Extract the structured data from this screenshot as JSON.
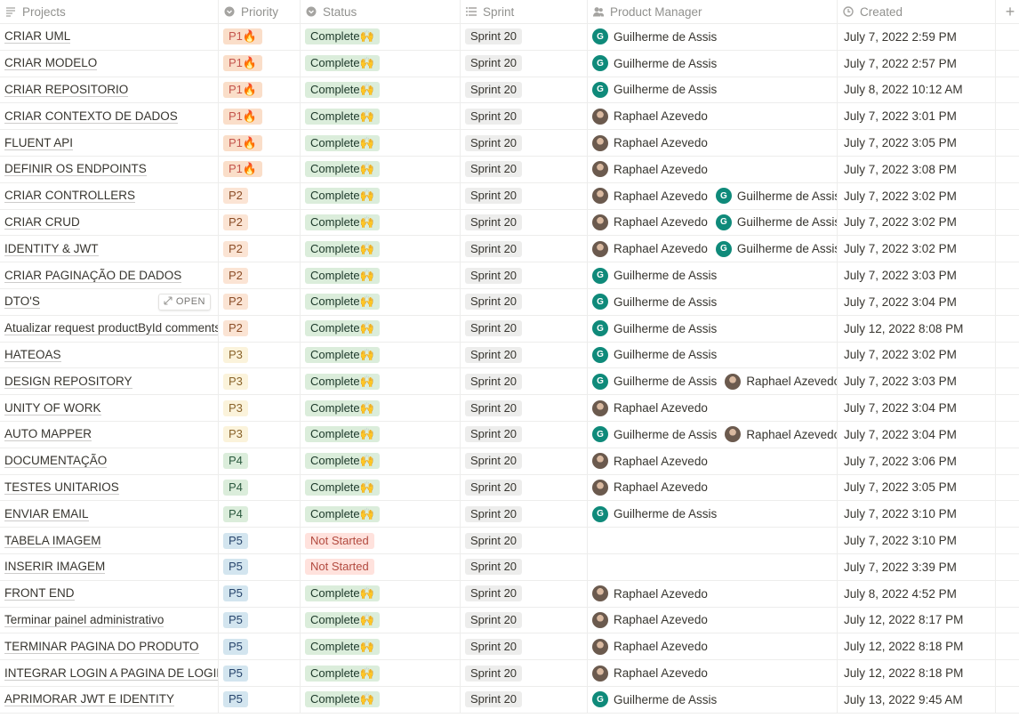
{
  "header": {
    "projects": "Projects",
    "priority": "Priority",
    "status": "Status",
    "sprint": "Sprint",
    "product_manager": "Product Manager",
    "created": "Created",
    "add": "+"
  },
  "open_label": "OPEN",
  "icons": {
    "projects": "text-icon",
    "priority": "select-icon",
    "status": "select-icon",
    "sprint": "list-icon",
    "product_manager": "person-icon",
    "created": "clock-icon",
    "open": "expand-icon"
  },
  "rows": [
    {
      "project": "CRIAR UML",
      "priority": "P1🔥",
      "priority_level": "p1",
      "status": "Complete🙌",
      "status_kind": "complete",
      "sprint": "Sprint 20",
      "managers": [
        {
          "name": "Guilherme de Assis",
          "initial": "G",
          "kind": "g"
        }
      ],
      "created": "July 7, 2022 2:59 PM"
    },
    {
      "project": "CRIAR MODELO",
      "priority": "P1🔥",
      "priority_level": "p1",
      "status": "Complete🙌",
      "status_kind": "complete",
      "sprint": "Sprint 20",
      "managers": [
        {
          "name": "Guilherme de Assis",
          "initial": "G",
          "kind": "g"
        }
      ],
      "created": "July 7, 2022 2:57 PM"
    },
    {
      "project": "CRIAR REPOSITORIO",
      "priority": "P1🔥",
      "priority_level": "p1",
      "status": "Complete🙌",
      "status_kind": "complete",
      "sprint": "Sprint 20",
      "managers": [
        {
          "name": "Guilherme de Assis",
          "initial": "G",
          "kind": "g"
        }
      ],
      "created": "July 8, 2022 10:12 AM"
    },
    {
      "project": "CRIAR CONTEXTO DE DADOS",
      "priority": "P1🔥",
      "priority_level": "p1",
      "status": "Complete🙌",
      "status_kind": "complete",
      "sprint": "Sprint 20",
      "managers": [
        {
          "name": "Raphael Azevedo",
          "initial": "",
          "kind": "r"
        }
      ],
      "created": "July 7, 2022 3:01 PM"
    },
    {
      "project": "FLUENT API",
      "priority": "P1🔥",
      "priority_level": "p1",
      "status": "Complete🙌",
      "status_kind": "complete",
      "sprint": "Sprint 20",
      "managers": [
        {
          "name": "Raphael Azevedo",
          "initial": "",
          "kind": "r"
        }
      ],
      "created": "July 7, 2022 3:05 PM"
    },
    {
      "project": "DEFINIR OS ENDPOINTS",
      "priority": "P1🔥",
      "priority_level": "p1",
      "status": "Complete🙌",
      "status_kind": "complete",
      "sprint": "Sprint 20",
      "managers": [
        {
          "name": "Raphael Azevedo",
          "initial": "",
          "kind": "r"
        }
      ],
      "created": "July 7, 2022 3:08 PM"
    },
    {
      "project": "CRIAR CONTROLLERS",
      "priority": "P2",
      "priority_level": "p2",
      "status": "Complete🙌",
      "status_kind": "complete",
      "sprint": "Sprint 20",
      "managers": [
        {
          "name": "Raphael Azevedo",
          "initial": "",
          "kind": "r"
        },
        {
          "name": "Guilherme de Assis",
          "initial": "G",
          "kind": "g"
        }
      ],
      "created": "July 7, 2022 3:02 PM"
    },
    {
      "project": "CRIAR CRUD",
      "priority": "P2",
      "priority_level": "p2",
      "status": "Complete🙌",
      "status_kind": "complete",
      "sprint": "Sprint 20",
      "managers": [
        {
          "name": "Raphael Azevedo",
          "initial": "",
          "kind": "r"
        },
        {
          "name": "Guilherme de Assis",
          "initial": "G",
          "kind": "g"
        }
      ],
      "created": "July 7, 2022 3:02 PM"
    },
    {
      "project": "IDENTITY & JWT",
      "priority": "P2",
      "priority_level": "p2",
      "status": "Complete🙌",
      "status_kind": "complete",
      "sprint": "Sprint 20",
      "managers": [
        {
          "name": "Raphael Azevedo",
          "initial": "",
          "kind": "r"
        },
        {
          "name": "Guilherme de Assis",
          "initial": "G",
          "kind": "g"
        }
      ],
      "created": "July 7, 2022 3:02 PM"
    },
    {
      "project": "CRIAR PAGINAÇÃO DE DADOS",
      "priority": "P2",
      "priority_level": "p2",
      "status": "Complete🙌",
      "status_kind": "complete",
      "sprint": "Sprint 20",
      "managers": [
        {
          "name": "Guilherme de Assis",
          "initial": "G",
          "kind": "g"
        }
      ],
      "created": "July 7, 2022 3:03 PM"
    },
    {
      "project": "DTO'S",
      "priority": "P2",
      "priority_level": "p2",
      "status": "Complete🙌",
      "status_kind": "complete",
      "sprint": "Sprint 20",
      "managers": [
        {
          "name": "Guilherme de Assis",
          "initial": "G",
          "kind": "g"
        }
      ],
      "created": "July 7, 2022 3:04 PM",
      "hover_open": true
    },
    {
      "project": "Atualizar request productById comments",
      "priority": "P2",
      "priority_level": "p2",
      "status": "Complete🙌",
      "status_kind": "complete",
      "sprint": "Sprint 20",
      "managers": [
        {
          "name": "Guilherme de Assis",
          "initial": "G",
          "kind": "g"
        }
      ],
      "created": "July 12, 2022 8:08 PM"
    },
    {
      "project": "HATEOAS",
      "priority": "P3",
      "priority_level": "p3",
      "status": "Complete🙌",
      "status_kind": "complete",
      "sprint": "Sprint 20",
      "managers": [
        {
          "name": "Guilherme de Assis",
          "initial": "G",
          "kind": "g"
        }
      ],
      "created": "July 7, 2022 3:02 PM"
    },
    {
      "project": "DESIGN REPOSITORY",
      "priority": "P3",
      "priority_level": "p3",
      "status": "Complete🙌",
      "status_kind": "complete",
      "sprint": "Sprint 20",
      "managers": [
        {
          "name": "Guilherme de Assis",
          "initial": "G",
          "kind": "g"
        },
        {
          "name": "Raphael Azevedo",
          "initial": "",
          "kind": "r"
        }
      ],
      "created": "July 7, 2022 3:03 PM"
    },
    {
      "project": "UNITY OF WORK",
      "priority": "P3",
      "priority_level": "p3",
      "status": "Complete🙌",
      "status_kind": "complete",
      "sprint": "Sprint 20",
      "managers": [
        {
          "name": "Raphael Azevedo",
          "initial": "",
          "kind": "r"
        }
      ],
      "created": "July 7, 2022 3:04 PM"
    },
    {
      "project": "AUTO MAPPER",
      "priority": "P3",
      "priority_level": "p3",
      "status": "Complete🙌",
      "status_kind": "complete",
      "sprint": "Sprint 20",
      "managers": [
        {
          "name": "Guilherme de Assis",
          "initial": "G",
          "kind": "g"
        },
        {
          "name": "Raphael Azevedo",
          "initial": "",
          "kind": "r"
        }
      ],
      "created": "July 7, 2022 3:04 PM"
    },
    {
      "project": "DOCUMENTAÇÃO",
      "priority": "P4",
      "priority_level": "p4",
      "status": "Complete🙌",
      "status_kind": "complete",
      "sprint": "Sprint 20",
      "managers": [
        {
          "name": "Raphael Azevedo",
          "initial": "",
          "kind": "r"
        }
      ],
      "created": "July 7, 2022 3:06 PM"
    },
    {
      "project": "TESTES UNITARIOS",
      "priority": "P4",
      "priority_level": "p4",
      "status": "Complete🙌",
      "status_kind": "complete",
      "sprint": "Sprint 20",
      "managers": [
        {
          "name": "Raphael Azevedo",
          "initial": "",
          "kind": "r"
        }
      ],
      "created": "July 7, 2022 3:05 PM"
    },
    {
      "project": "ENVIAR EMAIL",
      "priority": "P4",
      "priority_level": "p4",
      "status": "Complete🙌",
      "status_kind": "complete",
      "sprint": "Sprint 20",
      "managers": [
        {
          "name": "Guilherme de Assis",
          "initial": "G",
          "kind": "g"
        }
      ],
      "created": "July 7, 2022 3:10 PM"
    },
    {
      "project": "TABELA IMAGEM",
      "priority": "P5",
      "priority_level": "p5",
      "status": "Not Started",
      "status_kind": "notstarted",
      "sprint": "Sprint 20",
      "managers": [],
      "created": "July 7, 2022 3:10 PM"
    },
    {
      "project": "INSERIR IMAGEM",
      "priority": "P5",
      "priority_level": "p5",
      "status": "Not Started",
      "status_kind": "notstarted",
      "sprint": "Sprint 20",
      "managers": [],
      "created": "July 7, 2022 3:39 PM"
    },
    {
      "project": "FRONT END",
      "priority": "P5",
      "priority_level": "p5",
      "status": "Complete🙌",
      "status_kind": "complete",
      "sprint": "Sprint 20",
      "managers": [
        {
          "name": "Raphael Azevedo",
          "initial": "",
          "kind": "r"
        }
      ],
      "created": "July 8, 2022 4:52 PM"
    },
    {
      "project": "Terminar painel administrativo",
      "priority": "P5",
      "priority_level": "p5",
      "status": "Complete🙌",
      "status_kind": "complete",
      "sprint": "Sprint 20",
      "managers": [
        {
          "name": "Raphael Azevedo",
          "initial": "",
          "kind": "r"
        }
      ],
      "created": "July 12, 2022 8:17 PM"
    },
    {
      "project": "TERMINAR PAGINA DO PRODUTO",
      "priority": "P5",
      "priority_level": "p5",
      "status": "Complete🙌",
      "status_kind": "complete",
      "sprint": "Sprint 20",
      "managers": [
        {
          "name": "Raphael Azevedo",
          "initial": "",
          "kind": "r"
        }
      ],
      "created": "July 12, 2022 8:18 PM"
    },
    {
      "project": "INTEGRAR LOGIN A PAGINA DE LOGIN",
      "priority": "P5",
      "priority_level": "p5",
      "status": "Complete🙌",
      "status_kind": "complete",
      "sprint": "Sprint 20",
      "managers": [
        {
          "name": "Raphael Azevedo",
          "initial": "",
          "kind": "r"
        }
      ],
      "created": "July 12, 2022 8:18 PM"
    },
    {
      "project": "APRIMORAR JWT E IDENTITY",
      "priority": "P5",
      "priority_level": "p5",
      "status": "Complete🙌",
      "status_kind": "complete",
      "sprint": "Sprint 20",
      "managers": [
        {
          "name": "Guilherme de Assis",
          "initial": "G",
          "kind": "g"
        }
      ],
      "created": "July 13, 2022 9:45 AM"
    }
  ]
}
